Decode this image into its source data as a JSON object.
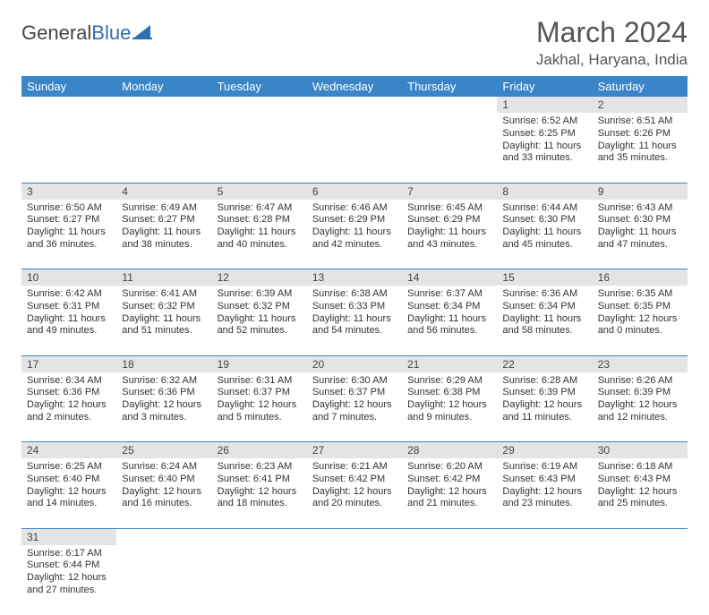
{
  "logo": {
    "part1": "General",
    "part2": "Blue"
  },
  "title": "March 2024",
  "location": "Jakhal, Haryana, India",
  "colors": {
    "header_bg": "#3a85c8",
    "header_text": "#ffffff",
    "daynum_bg": "#e4e4e4",
    "rule": "#3a85c8",
    "logo_blue": "#2e6fb5"
  },
  "dayHeaders": [
    "Sunday",
    "Monday",
    "Tuesday",
    "Wednesday",
    "Thursday",
    "Friday",
    "Saturday"
  ],
  "weeks": [
    [
      null,
      null,
      null,
      null,
      null,
      {
        "n": "1",
        "sr": "Sunrise: 6:52 AM",
        "ss": "Sunset: 6:25 PM",
        "dl": "Daylight: 11 hours and 33 minutes."
      },
      {
        "n": "2",
        "sr": "Sunrise: 6:51 AM",
        "ss": "Sunset: 6:26 PM",
        "dl": "Daylight: 11 hours and 35 minutes."
      }
    ],
    [
      {
        "n": "3",
        "sr": "Sunrise: 6:50 AM",
        "ss": "Sunset: 6:27 PM",
        "dl": "Daylight: 11 hours and 36 minutes."
      },
      {
        "n": "4",
        "sr": "Sunrise: 6:49 AM",
        "ss": "Sunset: 6:27 PM",
        "dl": "Daylight: 11 hours and 38 minutes."
      },
      {
        "n": "5",
        "sr": "Sunrise: 6:47 AM",
        "ss": "Sunset: 6:28 PM",
        "dl": "Daylight: 11 hours and 40 minutes."
      },
      {
        "n": "6",
        "sr": "Sunrise: 6:46 AM",
        "ss": "Sunset: 6:29 PM",
        "dl": "Daylight: 11 hours and 42 minutes."
      },
      {
        "n": "7",
        "sr": "Sunrise: 6:45 AM",
        "ss": "Sunset: 6:29 PM",
        "dl": "Daylight: 11 hours and 43 minutes."
      },
      {
        "n": "8",
        "sr": "Sunrise: 6:44 AM",
        "ss": "Sunset: 6:30 PM",
        "dl": "Daylight: 11 hours and 45 minutes."
      },
      {
        "n": "9",
        "sr": "Sunrise: 6:43 AM",
        "ss": "Sunset: 6:30 PM",
        "dl": "Daylight: 11 hours and 47 minutes."
      }
    ],
    [
      {
        "n": "10",
        "sr": "Sunrise: 6:42 AM",
        "ss": "Sunset: 6:31 PM",
        "dl": "Daylight: 11 hours and 49 minutes."
      },
      {
        "n": "11",
        "sr": "Sunrise: 6:41 AM",
        "ss": "Sunset: 6:32 PM",
        "dl": "Daylight: 11 hours and 51 minutes."
      },
      {
        "n": "12",
        "sr": "Sunrise: 6:39 AM",
        "ss": "Sunset: 6:32 PM",
        "dl": "Daylight: 11 hours and 52 minutes."
      },
      {
        "n": "13",
        "sr": "Sunrise: 6:38 AM",
        "ss": "Sunset: 6:33 PM",
        "dl": "Daylight: 11 hours and 54 minutes."
      },
      {
        "n": "14",
        "sr": "Sunrise: 6:37 AM",
        "ss": "Sunset: 6:34 PM",
        "dl": "Daylight: 11 hours and 56 minutes."
      },
      {
        "n": "15",
        "sr": "Sunrise: 6:36 AM",
        "ss": "Sunset: 6:34 PM",
        "dl": "Daylight: 11 hours and 58 minutes."
      },
      {
        "n": "16",
        "sr": "Sunrise: 6:35 AM",
        "ss": "Sunset: 6:35 PM",
        "dl": "Daylight: 12 hours and 0 minutes."
      }
    ],
    [
      {
        "n": "17",
        "sr": "Sunrise: 6:34 AM",
        "ss": "Sunset: 6:36 PM",
        "dl": "Daylight: 12 hours and 2 minutes."
      },
      {
        "n": "18",
        "sr": "Sunrise: 6:32 AM",
        "ss": "Sunset: 6:36 PM",
        "dl": "Daylight: 12 hours and 3 minutes."
      },
      {
        "n": "19",
        "sr": "Sunrise: 6:31 AM",
        "ss": "Sunset: 6:37 PM",
        "dl": "Daylight: 12 hours and 5 minutes."
      },
      {
        "n": "20",
        "sr": "Sunrise: 6:30 AM",
        "ss": "Sunset: 6:37 PM",
        "dl": "Daylight: 12 hours and 7 minutes."
      },
      {
        "n": "21",
        "sr": "Sunrise: 6:29 AM",
        "ss": "Sunset: 6:38 PM",
        "dl": "Daylight: 12 hours and 9 minutes."
      },
      {
        "n": "22",
        "sr": "Sunrise: 6:28 AM",
        "ss": "Sunset: 6:39 PM",
        "dl": "Daylight: 12 hours and 11 minutes."
      },
      {
        "n": "23",
        "sr": "Sunrise: 6:26 AM",
        "ss": "Sunset: 6:39 PM",
        "dl": "Daylight: 12 hours and 12 minutes."
      }
    ],
    [
      {
        "n": "24",
        "sr": "Sunrise: 6:25 AM",
        "ss": "Sunset: 6:40 PM",
        "dl": "Daylight: 12 hours and 14 minutes."
      },
      {
        "n": "25",
        "sr": "Sunrise: 6:24 AM",
        "ss": "Sunset: 6:40 PM",
        "dl": "Daylight: 12 hours and 16 minutes."
      },
      {
        "n": "26",
        "sr": "Sunrise: 6:23 AM",
        "ss": "Sunset: 6:41 PM",
        "dl": "Daylight: 12 hours and 18 minutes."
      },
      {
        "n": "27",
        "sr": "Sunrise: 6:21 AM",
        "ss": "Sunset: 6:42 PM",
        "dl": "Daylight: 12 hours and 20 minutes."
      },
      {
        "n": "28",
        "sr": "Sunrise: 6:20 AM",
        "ss": "Sunset: 6:42 PM",
        "dl": "Daylight: 12 hours and 21 minutes."
      },
      {
        "n": "29",
        "sr": "Sunrise: 6:19 AM",
        "ss": "Sunset: 6:43 PM",
        "dl": "Daylight: 12 hours and 23 minutes."
      },
      {
        "n": "30",
        "sr": "Sunrise: 6:18 AM",
        "ss": "Sunset: 6:43 PM",
        "dl": "Daylight: 12 hours and 25 minutes."
      }
    ],
    [
      {
        "n": "31",
        "sr": "Sunrise: 6:17 AM",
        "ss": "Sunset: 6:44 PM",
        "dl": "Daylight: 12 hours and 27 minutes."
      },
      null,
      null,
      null,
      null,
      null,
      null
    ]
  ]
}
